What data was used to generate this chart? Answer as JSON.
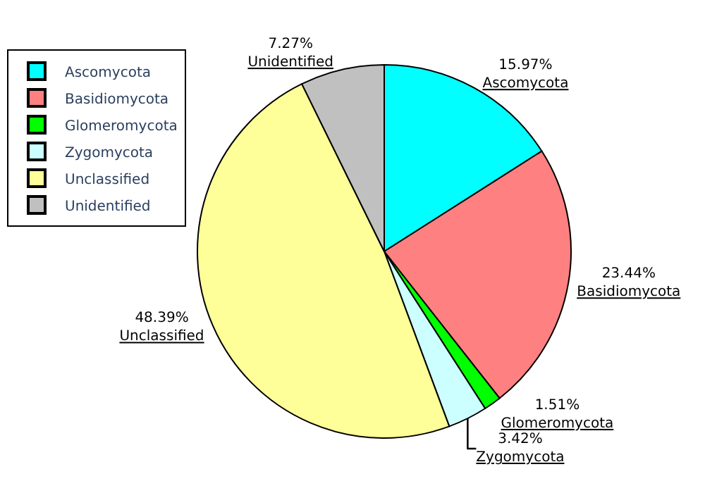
{
  "chart_data": {
    "type": "pie",
    "categories": [
      "Ascomycota",
      "Basidiomycota",
      "Glomeromycota",
      "Zygomycota",
      "Unclassified",
      "Unidentified"
    ],
    "values": [
      15.97,
      23.44,
      1.51,
      3.42,
      48.39,
      7.27
    ],
    "value_labels": [
      "15.97%",
      "23.44%",
      "1.51%",
      "3.42%",
      "48.39%",
      "7.27%"
    ],
    "colors": [
      "#00ffff",
      "#ff8080",
      "#00ff00",
      "#ccffff",
      "#ffff99",
      "#c0c0c0"
    ],
    "legend": "top left"
  }
}
